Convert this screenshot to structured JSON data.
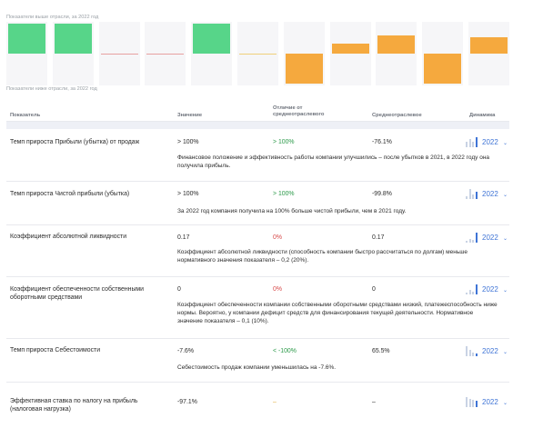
{
  "captions": {
    "above": "Показатели выше отрасли, за 2022 год",
    "below": "Показатели ниже отрасли, за 2022 год"
  },
  "chart_data": {
    "type": "bar",
    "bars": [
      {
        "value": 1.0,
        "color": "#57d589"
      },
      {
        "value": 1.0,
        "color": "#57d589"
      },
      {
        "value": 0.0,
        "color": "#e7a0a0"
      },
      {
        "value": 0.0,
        "color": "#e7a0a0"
      },
      {
        "value": 1.0,
        "color": "#57d589"
      },
      {
        "value": 0.0,
        "color": "#f0d07a"
      },
      {
        "value": -1.0,
        "color": "#f5a93e"
      },
      {
        "value": 0.33,
        "color": "#f5a93e"
      },
      {
        "value": 0.62,
        "color": "#f5a93e"
      },
      {
        "value": -1.0,
        "color": "#f5a93e"
      },
      {
        "value": 0.55,
        "color": "#f5a93e"
      }
    ]
  },
  "table": {
    "headers": {
      "indicator": "Показатель",
      "value": "Значение",
      "difference": "Отличие от среднеотраслевого",
      "average": "Среднеотраслевое",
      "dynamics": "Динамика"
    },
    "rows": [
      {
        "name": "Темп прироста Прибыли (убытка) от продаж",
        "value": "> 100%",
        "difference": "> 100%",
        "diff_color": "pos",
        "average": "-76.1%",
        "year": "2022",
        "spark": [
          0.55,
          0.85,
          0.55,
          1.0
        ],
        "description": "Финансовое положение и эффективность работы компании улучшились – после убытков в 2021, в 2022 году она получила прибыль."
      },
      {
        "name": "Темп прироста Чистой прибыли (убытка)",
        "value": "> 100%",
        "difference": "> 100%",
        "diff_color": "pos",
        "average": "-99.8%",
        "year": "2022",
        "spark": [
          0.3,
          1.0,
          0.45,
          0.75
        ],
        "description": "За 2022 год компания получила на 100% больше чистой прибыли, чем в 2021 году."
      },
      {
        "name": "Коэффициент абсолютной ликвидности",
        "value": "0.17",
        "difference": "0%",
        "diff_color": "neg",
        "average": "0.17",
        "year": "2022",
        "spark": [
          0.2,
          0.35,
          0.3,
          1.0
        ],
        "description": "Коэффициент абсолютной ликвидности (способность компании быстро рассчитаться по долгам) меньше нормативного значения показателя – 0,2 (20%)."
      },
      {
        "name": "Коэффициент обеспеченности собственными оборотными средствами",
        "value": "0",
        "difference": "0%",
        "diff_color": "neg",
        "average": "0",
        "year": "2022",
        "spark": [
          0.2,
          0.45,
          0.3,
          1.0
        ],
        "description": "Коэффициент обеспеченности компании собственными оборотными средствами низкий, платежеспособность ниже нормы. Вероятно, у компании дефицит средств для финансирования текущей деятельности. Нормативное значение показателя – 0,1 (10%)."
      },
      {
        "name": "Темп прироста Себестоимости",
        "value": "-7.6%",
        "difference": "< -100%",
        "diff_color": "pos",
        "average": "65.5%",
        "year": "2022",
        "spark": [
          1.0,
          0.6,
          0.35,
          0.3
        ],
        "description": "Себестоимость продаж компании уменьшилась на -7.6%."
      },
      {
        "name": "Эффективная ставка по налогу на прибыль (налоговая нагрузка)",
        "value": "-97.1%",
        "difference": "–",
        "diff_color": "neutral",
        "average": "–",
        "year": "2022",
        "spark": [
          1.0,
          0.85,
          0.75,
          0.6
        ],
        "description": ""
      }
    ]
  }
}
